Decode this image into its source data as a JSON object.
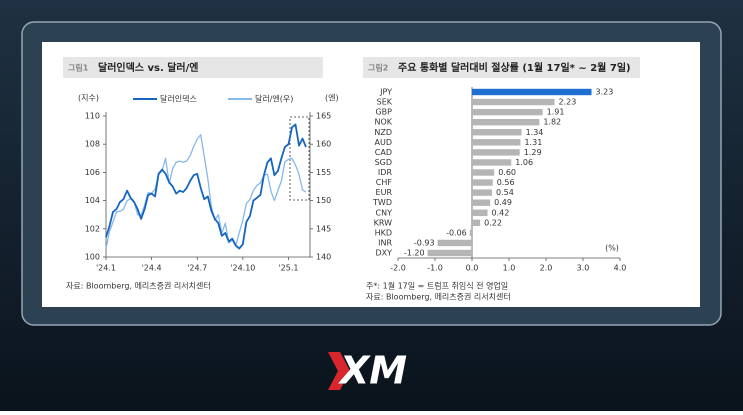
{
  "chart_data": [
    {
      "type": "line",
      "figure_label": "그림1",
      "title": "달러인덱스 vs. 달러/엔",
      "y_label": "(지수)",
      "y2_label": "(엔)",
      "categories": [
        "'24.1",
        null,
        null,
        null,
        null,
        null,
        null,
        null,
        null,
        null,
        null,
        null,
        null,
        "'24.4",
        null,
        null,
        null,
        null,
        null,
        null,
        null,
        null,
        null,
        null,
        null,
        null,
        "'24.7",
        null,
        null,
        null,
        null,
        null,
        null,
        null,
        null,
        null,
        null,
        null,
        null,
        "'24.10",
        null,
        null,
        null,
        null,
        null,
        null,
        null,
        null,
        null,
        null,
        null,
        null,
        "'25.1",
        null,
        null,
        null,
        null,
        null
      ],
      "series": [
        {
          "name": "달러인덱스",
          "color": "#1565c0",
          "axis": "y",
          "values": [
            101.4,
            102.2,
            103.2,
            103.4,
            103.9,
            104.1,
            104.7,
            104.2,
            103.9,
            103.4,
            102.7,
            103.4,
            104.4,
            104.5,
            104.3,
            105.9,
            106.2,
            105.9,
            105.3,
            105.0,
            104.5,
            104.7,
            104.6,
            104.9,
            105.4,
            105.8,
            105.9,
            104.9,
            104.1,
            104.3,
            103.3,
            102.7,
            102.4,
            101.5,
            101.7,
            101.1,
            101.3,
            100.8,
            100.6,
            100.9,
            102.5,
            102.9,
            104.0,
            104.2,
            104.4,
            105.8,
            106.7,
            107.0,
            105.8,
            106.1,
            107.0,
            107.8,
            108.0,
            109.2,
            109.4,
            107.9,
            108.4,
            107.8
          ]
        },
        {
          "name": "달러/엔(우)",
          "color": "#86b8ea",
          "axis": "y2",
          "values": [
            141.5,
            144.5,
            146.2,
            148.0,
            148.1,
            148.5,
            150.0,
            150.3,
            149.8,
            147.5,
            147.4,
            149.2,
            151.4,
            151.3,
            152.0,
            154.6,
            155.3,
            157.5,
            153.0,
            155.7,
            156.8,
            157.0,
            156.8,
            157.0,
            158.0,
            159.6,
            160.9,
            161.7,
            157.9,
            153.9,
            149.0,
            146.5,
            147.5,
            144.2,
            146.0,
            142.5,
            143.0,
            142.0,
            144.3,
            146.5,
            149.5,
            150.2,
            151.8,
            152.7,
            153.1,
            154.5,
            154.7,
            151.7,
            150.0,
            151.8,
            153.5,
            156.9,
            157.3,
            157.5,
            156.3,
            154.7,
            151.9,
            151.5
          ]
        }
      ],
      "ylim": [
        100,
        110
      ],
      "yticks": [
        100,
        102,
        104,
        106,
        108,
        110
      ],
      "y2lim": [
        140,
        165
      ],
      "y2ticks": [
        140,
        145,
        150,
        155,
        160,
        165
      ],
      "source": "자료: Bloomberg, 메리츠증권 리서치센터"
    },
    {
      "type": "bar",
      "orientation": "horizontal",
      "figure_label": "그림2",
      "title": "주요 통화별 달러대비 절상률 (1월 17일* ~ 2월 7일)",
      "categories": [
        "JPY",
        "SEK",
        "GBP",
        "NOK",
        "NZD",
        "AUD",
        "CAD",
        "SGD",
        "IDR",
        "CHF",
        "EUR",
        "TWD",
        "CNY",
        "KRW",
        "HKD",
        "INR",
        "DXY"
      ],
      "values": [
        3.23,
        2.23,
        1.91,
        1.82,
        1.34,
        1.31,
        1.29,
        1.06,
        0.6,
        0.56,
        0.54,
        0.49,
        0.42,
        0.22,
        -0.06,
        -0.93,
        -1.2
      ],
      "value_labels": [
        "3.23",
        "2.23",
        "1.91",
        "1.82",
        "1.34",
        "1.31",
        "1.29",
        "1.06",
        "0.60",
        "0.56",
        "0.54",
        "0.49",
        "0.42",
        "0.22",
        "-0.06",
        "-0.93",
        "-1.20"
      ],
      "colors": [
        "#1f6fd1",
        "#b5b5b5",
        "#b5b5b5",
        "#b5b5b5",
        "#b5b5b5",
        "#b5b5b5",
        "#b5b5b5",
        "#b5b5b5",
        "#b5b5b5",
        "#b5b5b5",
        "#b5b5b5",
        "#b5b5b5",
        "#b5b5b5",
        "#b5b5b5",
        "#b5b5b5",
        "#b5b5b5",
        "#b5b5b5"
      ],
      "xlim": [
        -2,
        4
      ],
      "xticks": [
        {
          "value": -2,
          "label": "-2.0"
        },
        {
          "value": -1,
          "label": "-1.0"
        },
        {
          "value": 0,
          "label": "0.0"
        },
        {
          "value": 1,
          "label": "1.0"
        },
        {
          "value": 2,
          "label": "2.0"
        },
        {
          "value": 3,
          "label": "3.0"
        },
        {
          "value": 4,
          "label": "4.0"
        }
      ],
      "x_unit": "(%)",
      "note": "주*: 1월 17일 = 트럼프 취임식 전 영업일",
      "source": "자료: Bloomberg, 메리츠증권 리서치센터"
    }
  ],
  "logo": "XM"
}
